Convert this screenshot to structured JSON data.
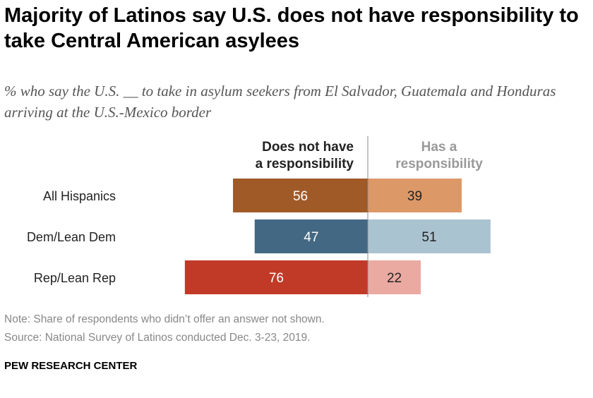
{
  "title": "Majority of Latinos say U.S. does not have responsibility to take Central American asylees",
  "subtitle": "% who say the U.S. __ to take in asylum seekers from El Salvador, Guatemala and Honduras arriving at the U.S.-Mexico border",
  "note": "Note: Share of respondents who didn’t offer an answer not shown.",
  "source": "Source: National Survey of Latinos conducted Dec. 3-23, 2019.",
  "brand": "PEW RESEARCH CENTER",
  "chart_data": {
    "type": "bar",
    "orientation": "horizontal-diverging",
    "categories": [
      "All Hispanics",
      "Dem/Lean Dem",
      "Rep/Lean Rep"
    ],
    "series": [
      {
        "name": "Does not have a responsibility",
        "name_lines": [
          "Does not have",
          "a responsibility"
        ],
        "values": [
          56,
          47,
          76
        ],
        "colors": [
          "#a05a28",
          "#436884",
          "#c13a28"
        ],
        "label_color": "#ffffff",
        "header_color": "#222222"
      },
      {
        "name": "Has a responsibility",
        "name_lines": [
          "Has a",
          "responsibility"
        ],
        "values": [
          39,
          51,
          22
        ],
        "colors": [
          "#dd9868",
          "#aac3d0",
          "#eaaaa2"
        ],
        "label_color": "#222222",
        "header_color": "#999999"
      }
    ]
  }
}
